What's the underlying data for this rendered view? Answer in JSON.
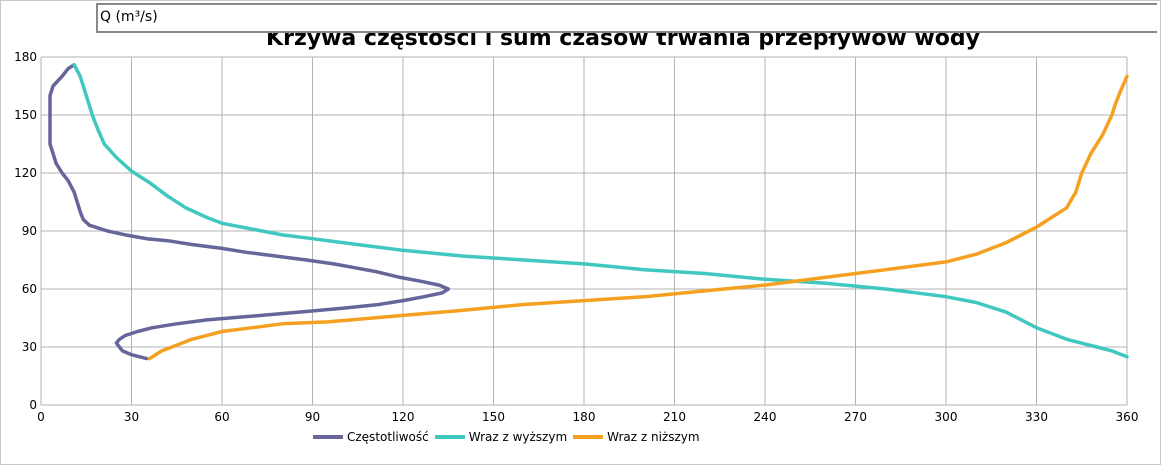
{
  "chart_data": {
    "type": "line",
    "title": "Krzywa częstości i sum czasów trwania przepływów wody",
    "ylabel": "Q (m³/s)",
    "xlabel": "",
    "xlim": [
      0,
      360
    ],
    "ylim": [
      0,
      180
    ],
    "xticks": [
      0,
      30,
      60,
      90,
      120,
      150,
      180,
      210,
      240,
      270,
      300,
      330,
      360
    ],
    "yticks": [
      0,
      30,
      60,
      90,
      120,
      150,
      180
    ],
    "grid": true,
    "legend_position": "bottom",
    "series": [
      {
        "name": "Częstotliwość",
        "color": "#66669a",
        "points": [
          [
            35,
            24
          ],
          [
            30,
            26
          ],
          [
            27,
            28
          ],
          [
            26,
            30
          ],
          [
            25,
            32
          ],
          [
            26,
            34
          ],
          [
            28,
            36
          ],
          [
            32,
            38
          ],
          [
            37,
            40
          ],
          [
            45,
            42
          ],
          [
            55,
            44
          ],
          [
            70,
            46
          ],
          [
            85,
            48
          ],
          [
            100,
            50
          ],
          [
            112,
            52
          ],
          [
            120,
            54
          ],
          [
            127,
            56
          ],
          [
            133,
            58
          ],
          [
            135,
            60
          ],
          [
            132,
            62
          ],
          [
            126,
            64
          ],
          [
            119,
            66
          ],
          [
            111,
            69
          ],
          [
            104,
            71
          ],
          [
            97,
            73
          ],
          [
            88,
            75
          ],
          [
            78,
            77
          ],
          [
            68,
            79
          ],
          [
            60,
            81
          ],
          [
            50,
            83
          ],
          [
            42,
            85
          ],
          [
            35,
            86
          ],
          [
            28,
            88
          ],
          [
            22,
            90
          ],
          [
            16,
            93
          ],
          [
            14,
            96
          ],
          [
            13,
            100
          ],
          [
            12,
            105
          ],
          [
            11,
            110
          ],
          [
            9,
            116
          ],
          [
            7,
            120
          ],
          [
            5,
            125
          ],
          [
            4,
            130
          ],
          [
            3,
            135
          ],
          [
            3,
            140
          ],
          [
            3,
            145
          ],
          [
            3,
            150
          ],
          [
            3,
            155
          ],
          [
            3,
            160
          ],
          [
            4,
            165
          ],
          [
            7,
            170
          ],
          [
            9,
            174
          ],
          [
            11,
            176
          ]
        ]
      },
      {
        "name": "Wraz z wyższym",
        "color": "#40c8c0",
        "points": [
          [
            11,
            176
          ],
          [
            13,
            170
          ],
          [
            15,
            160
          ],
          [
            17,
            150
          ],
          [
            19,
            142
          ],
          [
            21,
            135
          ],
          [
            25,
            128
          ],
          [
            30,
            121
          ],
          [
            36,
            115
          ],
          [
            42,
            108
          ],
          [
            48,
            102
          ],
          [
            55,
            97
          ],
          [
            60,
            94
          ],
          [
            70,
            91
          ],
          [
            80,
            88
          ],
          [
            90,
            86
          ],
          [
            100,
            84
          ],
          [
            110,
            82
          ],
          [
            120,
            80
          ],
          [
            140,
            77
          ],
          [
            160,
            75
          ],
          [
            180,
            73
          ],
          [
            200,
            70
          ],
          [
            220,
            68
          ],
          [
            240,
            65
          ],
          [
            260,
            63
          ],
          [
            280,
            60
          ],
          [
            300,
            56
          ],
          [
            310,
            53
          ],
          [
            320,
            48
          ],
          [
            330,
            40
          ],
          [
            340,
            34
          ],
          [
            350,
            30
          ],
          [
            355,
            28
          ],
          [
            360,
            25
          ]
        ]
      },
      {
        "name": "Wraz z niższym",
        "color": "#f5a020",
        "points": [
          [
            36,
            24
          ],
          [
            40,
            28
          ],
          [
            45,
            31
          ],
          [
            50,
            34
          ],
          [
            55,
            36
          ],
          [
            60,
            38
          ],
          [
            70,
            40
          ],
          [
            80,
            42
          ],
          [
            95,
            43
          ],
          [
            110,
            45
          ],
          [
            125,
            47
          ],
          [
            140,
            49
          ],
          [
            160,
            52
          ],
          [
            180,
            54
          ],
          [
            200,
            56
          ],
          [
            220,
            59
          ],
          [
            240,
            62
          ],
          [
            260,
            66
          ],
          [
            280,
            70
          ],
          [
            300,
            74
          ],
          [
            310,
            78
          ],
          [
            320,
            84
          ],
          [
            330,
            92
          ],
          [
            340,
            102
          ],
          [
            343,
            110
          ],
          [
            345,
            120
          ],
          [
            348,
            130
          ],
          [
            352,
            140
          ],
          [
            355,
            150
          ],
          [
            356,
            155
          ],
          [
            358,
            163
          ],
          [
            360,
            170
          ]
        ]
      }
    ]
  }
}
